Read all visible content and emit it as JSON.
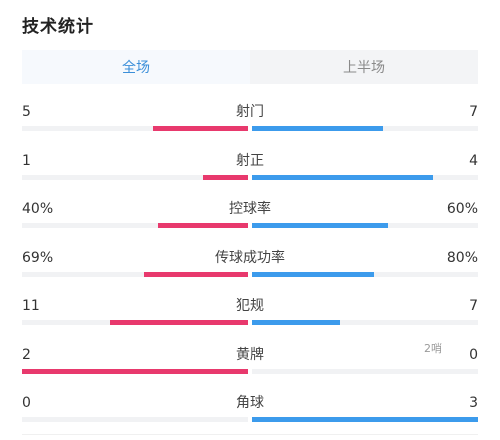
{
  "title": "技术统计",
  "tabs": [
    {
      "label": "全场",
      "active": true
    },
    {
      "label": "上半场",
      "active": false
    }
  ],
  "colors": {
    "home": "#e8396d",
    "away": "#3c9bec",
    "accent": "#3b8fd9"
  },
  "stats": [
    {
      "name": "射门",
      "left": "5",
      "right": "7",
      "left_fraction": 0.42,
      "right_fraction": 0.58
    },
    {
      "name": "射正",
      "left": "1",
      "right": "4",
      "left_fraction": 0.2,
      "right_fraction": 0.8
    },
    {
      "name": "控球率",
      "left": "40%",
      "right": "60%",
      "left_fraction": 0.4,
      "right_fraction": 0.6
    },
    {
      "name": "传球成功率",
      "left": "69%",
      "right": "80%",
      "left_fraction": 0.46,
      "right_fraction": 0.54
    },
    {
      "name": "犯规",
      "left": "11",
      "right": "7",
      "left_fraction": 0.61,
      "right_fraction": 0.39
    },
    {
      "name": "黄牌",
      "left": "2",
      "right": "0",
      "left_fraction": 1.0,
      "right_fraction": 0.0
    },
    {
      "name": "角球",
      "left": "0",
      "right": "3",
      "left_fraction": 0.0,
      "right_fraction": 1.0
    }
  ],
  "watermark": "2哨"
}
